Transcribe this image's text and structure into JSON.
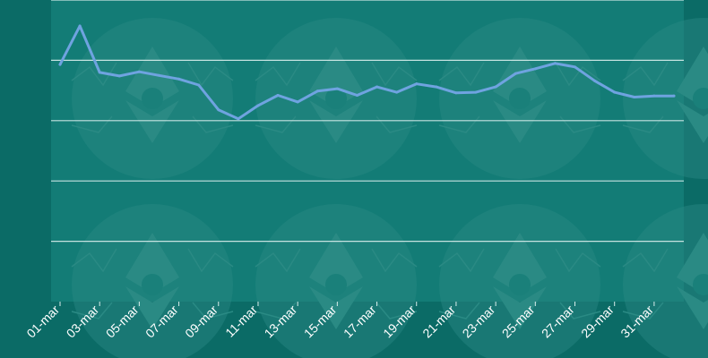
{
  "colors": {
    "page_background": "#0b6b66",
    "plot_background": "#137c76",
    "watermark": "#2a8a84",
    "gridline": "#d9eeec",
    "line": "#6fa3e0",
    "tick_text": "#ffffff"
  },
  "watermark_icon": "ethereum-logo-icon",
  "chart_data": {
    "type": "line",
    "title": "",
    "xlabel": "",
    "ylabel": "",
    "grid": true,
    "ylim": [
      0,
      5
    ],
    "x": [
      "01-mar",
      "02-mar",
      "03-mar",
      "04-mar",
      "05-mar",
      "06-mar",
      "07-mar",
      "08-mar",
      "09-mar",
      "10-mar",
      "11-mar",
      "12-mar",
      "13-mar",
      "14-mar",
      "15-mar",
      "16-mar",
      "17-mar",
      "18-mar",
      "19-mar",
      "20-mar",
      "21-mar",
      "22-mar",
      "23-mar",
      "24-mar",
      "25-mar",
      "26-mar",
      "27-mar",
      "28-mar",
      "29-mar",
      "30-mar",
      "31-mar",
      "01-apr"
    ],
    "xtick_labels": [
      "01-mar",
      "03-mar",
      "05-mar",
      "07-mar",
      "09-mar",
      "11-mar",
      "13-mar",
      "15-mar",
      "17-mar",
      "19-mar",
      "21-mar",
      "23-mar",
      "25-mar",
      "27-mar",
      "29-mar",
      "31-mar"
    ],
    "series": [
      {
        "name": "",
        "values": [
          3.93,
          4.57,
          3.8,
          3.74,
          3.81,
          3.75,
          3.69,
          3.59,
          3.18,
          3.03,
          3.25,
          3.42,
          3.31,
          3.49,
          3.53,
          3.42,
          3.56,
          3.47,
          3.61,
          3.56,
          3.46,
          3.47,
          3.56,
          3.78,
          3.86,
          3.95,
          3.89,
          3.66,
          3.47,
          3.39,
          3.41,
          3.41
        ]
      }
    ]
  }
}
